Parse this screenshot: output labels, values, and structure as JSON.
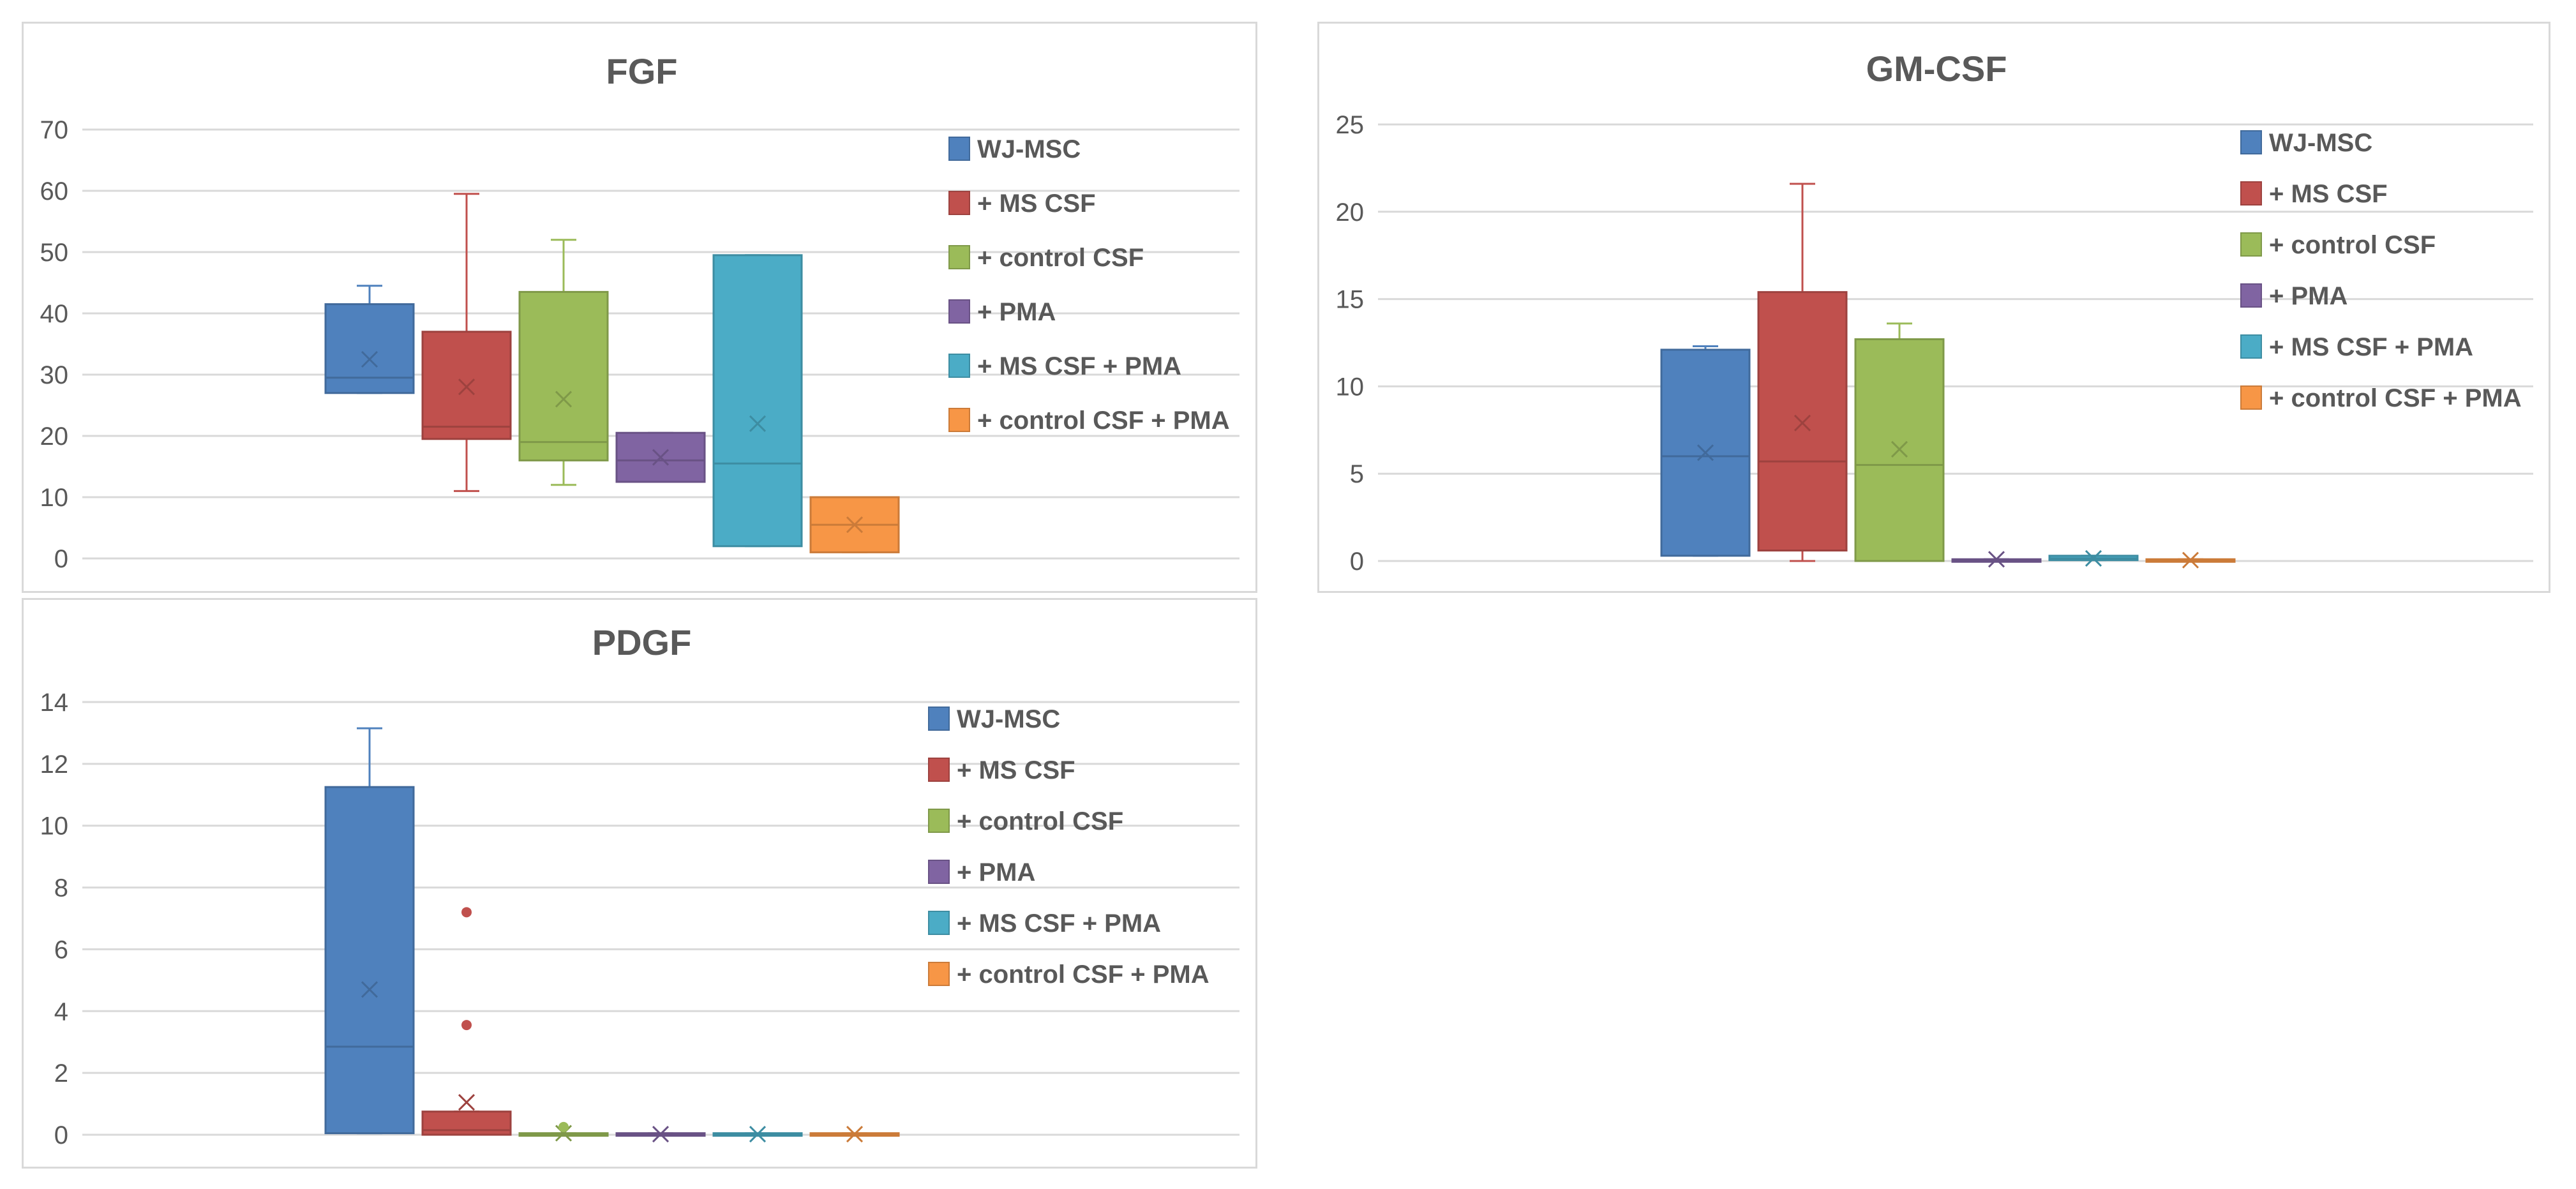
{
  "colors": {
    "WJ-MSC": "#4f81bd",
    "MS CSF": "#c0504d",
    "control CSF": "#9bbb59",
    "PMA": "#8064a2",
    "MS CSF PMA": "#4bacc6",
    "control CSF PMA": "#f79646",
    "grid": "#d9d9d9",
    "axis_text": "#595959"
  },
  "chart_data": [
    {
      "type": "box",
      "title": "FGF",
      "ylim": [
        0,
        70
      ],
      "yticks": [
        "0",
        "10",
        "20",
        "30",
        "40",
        "50",
        "60",
        "70"
      ],
      "legend": [
        "WJ-MSC",
        "+ MS CSF",
        "+ control CSF",
        "+ PMA",
        "+ MS CSF +  PMA",
        "+ control CSF + PMA"
      ],
      "series": [
        {
          "name": "WJ-MSC",
          "color_key": "WJ-MSC",
          "min": 27,
          "q1": 27,
          "median": 29.5,
          "q3": 41.5,
          "max": 44.5,
          "mean": 32.5,
          "outliers": []
        },
        {
          "name": "+ MS CSF",
          "color_key": "MS CSF",
          "min": 11,
          "q1": 19.5,
          "median": 21.5,
          "q3": 37,
          "max": 59.5,
          "mean": 28,
          "outliers": []
        },
        {
          "name": "+ control CSF",
          "color_key": "control CSF",
          "min": 12,
          "q1": 16,
          "median": 19,
          "q3": 43.5,
          "max": 52,
          "mean": 26,
          "outliers": []
        },
        {
          "name": "+ PMA",
          "color_key": "PMA",
          "min": 12.5,
          "q1": 12.5,
          "median": 16,
          "q3": 20.5,
          "max": 20.5,
          "mean": 16.5,
          "outliers": []
        },
        {
          "name": "+ MS CSF +  PMA",
          "color_key": "MS CSF PMA",
          "min": 2,
          "q1": 2,
          "median": 15.5,
          "q3": 49.5,
          "max": 49.5,
          "mean": 22,
          "outliers": []
        },
        {
          "name": "+ control CSF + PMA",
          "color_key": "control CSF PMA",
          "min": 1,
          "q1": 1,
          "median": 5.5,
          "q3": 10,
          "max": 10,
          "mean": 5.5,
          "outliers": []
        }
      ]
    },
    {
      "type": "box",
      "title": "GM-CSF",
      "ylim": [
        0,
        25
      ],
      "yticks": [
        "0",
        "5",
        "10",
        "15",
        "20",
        "25"
      ],
      "legend": [
        "WJ-MSC",
        "+ MS CSF",
        "+ control  CSF",
        "+ PMA",
        "+ MS CSF +  PMA",
        "+ control CSF +  PMA"
      ],
      "series": [
        {
          "name": "WJ-MSC",
          "color_key": "WJ-MSC",
          "min": 0.3,
          "q1": 0.3,
          "median": 6,
          "q3": 12.1,
          "max": 12.3,
          "mean": 6.2,
          "outliers": []
        },
        {
          "name": "+ MS CSF",
          "color_key": "MS CSF",
          "min": 0,
          "q1": 0.6,
          "median": 5.7,
          "q3": 15.4,
          "max": 21.6,
          "mean": 7.9,
          "outliers": []
        },
        {
          "name": "+ control  CSF",
          "color_key": "control CSF",
          "min": 0,
          "q1": 0,
          "median": 5.5,
          "q3": 12.7,
          "max": 13.6,
          "mean": 6.4,
          "outliers": []
        },
        {
          "name": "+ PMA",
          "color_key": "PMA",
          "min": 0,
          "q1": 0,
          "median": 0.05,
          "q3": 0.1,
          "max": 0.1,
          "mean": 0.1,
          "outliers": []
        },
        {
          "name": "+ MS CSF +  PMA",
          "color_key": "MS CSF PMA",
          "min": 0.05,
          "q1": 0.05,
          "median": 0.15,
          "q3": 0.3,
          "max": 0.3,
          "mean": 0.15,
          "outliers": []
        },
        {
          "name": "+ control CSF +  PMA",
          "color_key": "control CSF PMA",
          "min": 0,
          "q1": 0,
          "median": 0.05,
          "q3": 0.1,
          "max": 0.1,
          "mean": 0.05,
          "outliers": []
        }
      ]
    },
    {
      "type": "box",
      "title": "PDGF",
      "ylim": [
        0,
        14
      ],
      "yticks": [
        "0",
        "2",
        "4",
        "6",
        "8",
        "10",
        "12",
        "14"
      ],
      "legend": [
        "WJ-MSC",
        "+ MS CSF",
        "+ control CSF",
        "+ PMA",
        "+ MS CSF + PMA",
        "+ control CSF + PMA"
      ],
      "series": [
        {
          "name": "WJ-MSC",
          "color_key": "WJ-MSC",
          "min": 0.05,
          "q1": 0.05,
          "median": 2.85,
          "q3": 11.25,
          "max": 13.15,
          "mean": 4.7,
          "outliers": []
        },
        {
          "name": "+ MS CSF",
          "color_key": "MS CSF",
          "min": 0,
          "q1": 0,
          "median": 0.15,
          "q3": 0.75,
          "max": 0.75,
          "mean": 1.05,
          "outliers": [
            3.55,
            7.2
          ]
        },
        {
          "name": "+ control CSF",
          "color_key": "control CSF",
          "min": 0,
          "q1": 0,
          "median": 0.02,
          "q3": 0.05,
          "max": 0.05,
          "mean": 0.05,
          "outliers": [
            0.25
          ]
        },
        {
          "name": "+ PMA",
          "color_key": "PMA",
          "min": 0,
          "q1": 0,
          "median": 0.02,
          "q3": 0.05,
          "max": 0.05,
          "mean": 0.02,
          "outliers": []
        },
        {
          "name": "+ MS CSF + PMA",
          "color_key": "MS CSF PMA",
          "min": 0,
          "q1": 0,
          "median": 0.02,
          "q3": 0.05,
          "max": 0.05,
          "mean": 0.02,
          "outliers": []
        },
        {
          "name": "+ control CSF + PMA",
          "color_key": "control CSF PMA",
          "min": 0,
          "q1": 0,
          "median": 0.02,
          "q3": 0.05,
          "max": 0.05,
          "mean": 0.02,
          "outliers": []
        }
      ]
    }
  ]
}
